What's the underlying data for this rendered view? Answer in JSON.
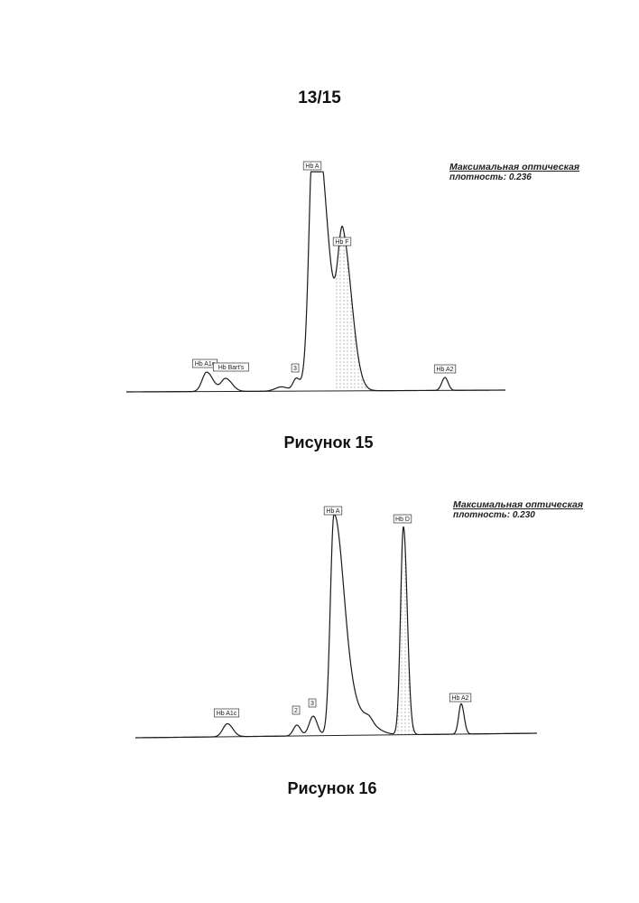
{
  "page": {
    "number": "13/15"
  },
  "colors": {
    "trace": "#1a1a1a",
    "fill_dots": "#555555",
    "baseline": "#222222"
  },
  "chart_data": [
    {
      "type": "line",
      "caption": "Рисунок 15",
      "od_title": "Максимальная оптическая",
      "od_value": "плотность: 0.236",
      "max_optical_density": 0.236,
      "peaks": [
        {
          "label": "Hb A1c",
          "rel_height": 0.09,
          "shaded": false
        },
        {
          "label": "Hb Bart's",
          "rel_height": 0.06,
          "shaded": false
        },
        {
          "label": "3",
          "rel_height": 0.05,
          "shaded": false
        },
        {
          "label": "Hb A",
          "rel_height": 1.0,
          "shaded": false
        },
        {
          "label": "Hb F",
          "rel_height": 0.65,
          "shaded": true
        },
        {
          "label": "Hb A2",
          "rel_height": 0.06,
          "shaded": false
        }
      ]
    },
    {
      "type": "line",
      "caption": "Рисунок 16",
      "od_title": "Максимальная оптическая",
      "od_value": "плотность: 0.230",
      "max_optical_density": 0.23,
      "peaks": [
        {
          "label": "Hb A1c",
          "rel_height": 0.06,
          "shaded": false
        },
        {
          "label": "2",
          "rel_height": 0.05,
          "shaded": false
        },
        {
          "label": "3",
          "rel_height": 0.09,
          "shaded": false
        },
        {
          "label": "Hb A",
          "rel_height": 1.0,
          "shaded": false
        },
        {
          "label": "Hb D",
          "rel_height": 0.96,
          "shaded": true
        },
        {
          "label": "Hb A2",
          "rel_height": 0.14,
          "shaded": false
        }
      ]
    }
  ]
}
